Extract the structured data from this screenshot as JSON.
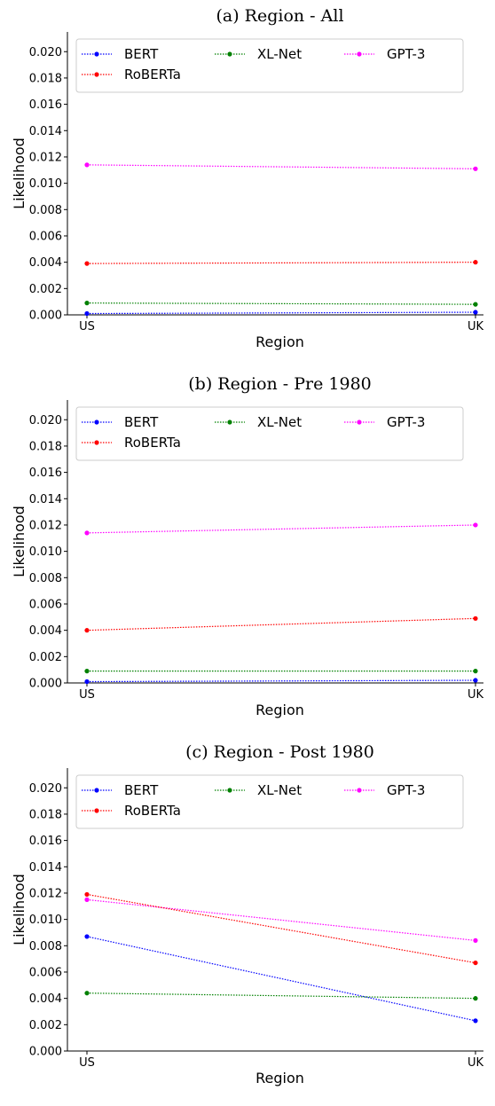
{
  "chart_data": [
    {
      "type": "line",
      "title": "(a) Region - All",
      "xlabel": "Region",
      "ylabel": "Likelihood",
      "categories": [
        "US",
        "UK"
      ],
      "ylim": [
        0,
        0.0215
      ],
      "yticks": [
        "0.000",
        "0.002",
        "0.004",
        "0.006",
        "0.008",
        "0.010",
        "0.012",
        "0.014",
        "0.016",
        "0.018",
        "0.020"
      ],
      "legend_position": "top",
      "grid": false,
      "series": [
        {
          "name": "BERT",
          "color": "#0000ff",
          "values": [
            0.0001,
            0.0002
          ]
        },
        {
          "name": "XL-Net",
          "color": "#008000",
          "values": [
            0.0009,
            0.0008
          ]
        },
        {
          "name": "GPT-3",
          "color": "#ff00ff",
          "values": [
            0.0114,
            0.0111
          ]
        },
        {
          "name": "RoBERTa",
          "color": "#ff0000",
          "values": [
            0.0039,
            0.004
          ]
        }
      ]
    },
    {
      "type": "line",
      "title": "(b) Region - Pre 1980",
      "xlabel": "Region",
      "ylabel": "Likelihood",
      "categories": [
        "US",
        "UK"
      ],
      "ylim": [
        0,
        0.0215
      ],
      "yticks": [
        "0.000",
        "0.002",
        "0.004",
        "0.006",
        "0.008",
        "0.010",
        "0.012",
        "0.014",
        "0.016",
        "0.018",
        "0.020"
      ],
      "legend_position": "top",
      "grid": false,
      "series": [
        {
          "name": "BERT",
          "color": "#0000ff",
          "values": [
            0.0001,
            0.0002
          ]
        },
        {
          "name": "XL-Net",
          "color": "#008000",
          "values": [
            0.0009,
            0.0009
          ]
        },
        {
          "name": "GPT-3",
          "color": "#ff00ff",
          "values": [
            0.0114,
            0.012
          ]
        },
        {
          "name": "RoBERTa",
          "color": "#ff0000",
          "values": [
            0.004,
            0.0049
          ]
        }
      ]
    },
    {
      "type": "line",
      "title": "(c) Region - Post 1980",
      "xlabel": "Region",
      "ylabel": "Likelihood",
      "categories": [
        "US",
        "UK"
      ],
      "ylim": [
        0,
        0.0215
      ],
      "yticks": [
        "0.000",
        "0.002",
        "0.004",
        "0.006",
        "0.008",
        "0.010",
        "0.012",
        "0.014",
        "0.016",
        "0.018",
        "0.020"
      ],
      "legend_position": "top",
      "grid": false,
      "series": [
        {
          "name": "BERT",
          "color": "#0000ff",
          "values": [
            0.0087,
            0.0023
          ]
        },
        {
          "name": "XL-Net",
          "color": "#008000",
          "values": [
            0.0044,
            0.004
          ]
        },
        {
          "name": "GPT-3",
          "color": "#ff00ff",
          "values": [
            0.0115,
            0.0084
          ]
        },
        {
          "name": "RoBERTa",
          "color": "#ff0000",
          "values": [
            0.0119,
            0.0067
          ]
        }
      ]
    }
  ]
}
